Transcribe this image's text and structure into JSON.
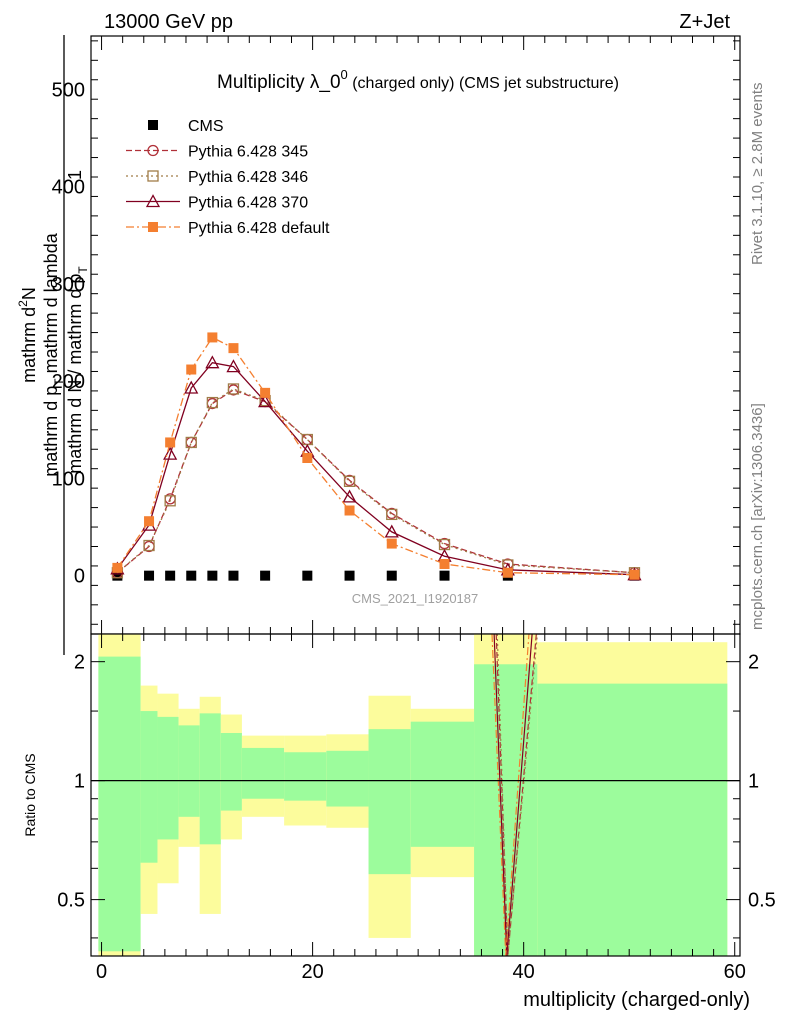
{
  "header": {
    "left": "13000 GeV pp",
    "right": "Z+Jet"
  },
  "side_labels": {
    "rivet": "Rivet 3.1.10, ≥ 2.8M events",
    "mcplots": "mcplots.cern.ch [arXiv:1306.3436]"
  },
  "watermark": "CMS_2021_I1920187",
  "chart_data": [
    {
      "type": "line",
      "title_main": "Multiplicity λ_0",
      "title_sup": "0",
      "title_rest": " (charged only) (CMS jet substructure)",
      "ylabel_numer_line1": "mathrm d",
      "ylabel_numer_sup": "2",
      "ylabel_numer_N": "N",
      "ylabel_numer_line2": "mathrm d p",
      "ylabel_numer_sub": "T",
      "ylabel_numer_line3": " mathrm d lambda",
      "ylabel_prefix": "1",
      "ylabel_denom": "mathrm d N / mathrm d p",
      "ylabel_denom_sub": "T",
      "ylim": [
        -60,
        555
      ],
      "xlim": [
        -1,
        60.5
      ],
      "yticks": [
        0,
        100,
        200,
        300,
        400,
        500
      ],
      "legend_position": "top-left",
      "series": [
        {
          "name": "CMS",
          "color": "#000000",
          "marker": "filled-square",
          "x": [
            1.5,
            4.5,
            6.5,
            8.5,
            10.5,
            12.5,
            15.5,
            19.5,
            23.5,
            27.5,
            32.5,
            38.5,
            50.5
          ],
          "values": [
            0,
            0,
            0,
            0,
            0,
            0,
            0,
            0,
            0,
            0,
            0,
            0,
            0
          ]
        },
        {
          "name": "Pythia 6.428 345",
          "color": "#b03038",
          "marker": "open-circle",
          "x": [
            1.5,
            4.5,
            6.5,
            8.5,
            10.5,
            12.5,
            15.5,
            19.5,
            23.5,
            27.5,
            32.5,
            38.5,
            50.5
          ],
          "values": [
            3,
            30,
            79,
            137,
            177,
            191,
            179,
            140,
            98,
            64,
            33,
            12,
            3
          ]
        },
        {
          "name": "Pythia 6.428 346",
          "color": "#a07c48",
          "marker": "open-square",
          "x": [
            1.5,
            4.5,
            6.5,
            8.5,
            10.5,
            12.5,
            15.5,
            19.5,
            23.5,
            27.5,
            32.5,
            38.5,
            50.5
          ],
          "values": [
            3,
            31,
            77,
            137,
            178,
            192,
            180,
            140,
            97,
            63,
            32,
            11,
            3
          ]
        },
        {
          "name": "Pythia 6.428 370",
          "color": "#800020",
          "marker": "open-triangle",
          "x": [
            1.5,
            4.5,
            6.5,
            8.5,
            10.5,
            12.5,
            15.5,
            19.5,
            23.5,
            27.5,
            32.5,
            38.5,
            50.5
          ],
          "values": [
            7,
            52,
            125,
            193,
            219,
            215,
            179,
            128,
            81,
            45,
            20,
            6,
            1
          ]
        },
        {
          "name": "Pythia 6.428 default",
          "color": "#f47f30",
          "marker": "filled-square",
          "x": [
            1.5,
            4.5,
            6.5,
            8.5,
            10.5,
            12.5,
            15.5,
            19.5,
            23.5,
            27.5,
            32.5,
            38.5,
            50.5
          ],
          "values": [
            8,
            56,
            137,
            212,
            245,
            234,
            188,
            121,
            67,
            33,
            12,
            3,
            1
          ]
        }
      ]
    },
    {
      "type": "line",
      "ylabel": "Ratio to CMS",
      "xlabel": "multiplicity (charged-only)",
      "ylim": [
        0.36,
        2.35
      ],
      "xlim": [
        -1,
        60.5
      ],
      "xticks": [
        0,
        20,
        40,
        60
      ],
      "yticks": [
        0.5,
        1,
        2
      ],
      "reference_value": 1,
      "bands": {
        "edges": [
          -0.3,
          3.7,
          5.3,
          7.3,
          9.3,
          11.3,
          13.3,
          17.3,
          21.3,
          25.3,
          29.3,
          35.3,
          41.3,
          59.3
        ],
        "inner_color": "#9cfc9c",
        "outer_color": "#fcfc9c",
        "inner_hi": [
          2.06,
          1.5,
          1.45,
          1.38,
          1.48,
          1.32,
          1.21,
          1.18,
          1.19,
          1.35,
          1.41,
          1.97,
          1.76
        ],
        "inner_lo": [
          0.37,
          0.62,
          0.71,
          0.81,
          0.69,
          0.84,
          0.9,
          0.89,
          0.86,
          0.58,
          0.68,
          0.36,
          0.36
        ],
        "outer_hi": [
          2.36,
          1.74,
          1.66,
          1.52,
          1.63,
          1.47,
          1.3,
          1.3,
          1.31,
          1.64,
          1.52,
          2.36,
          2.24
        ],
        "outer_lo": [
          0.36,
          0.46,
          0.55,
          0.68,
          0.46,
          0.71,
          0.81,
          0.77,
          0.76,
          0.4,
          0.57,
          0.36,
          0.36
        ]
      },
      "series": [
        {
          "name": "Pythia 6.428 345",
          "color": "#b03038",
          "x": [
            37.4,
            38.5,
            41.2
          ],
          "values": [
            2.4,
            0.3,
            2.4
          ]
        },
        {
          "name": "Pythia 6.428 346",
          "color": "#a07c48",
          "x": [
            37.5,
            38.5,
            41.3
          ],
          "values": [
            2.4,
            0.3,
            2.4
          ]
        },
        {
          "name": "Pythia 6.428 370",
          "color": "#800020",
          "x": [
            37.2,
            38.4,
            40.8
          ],
          "values": [
            2.4,
            0.3,
            2.4
          ]
        },
        {
          "name": "Pythia 6.428 default",
          "color": "#f47f30",
          "x": [
            37.0,
            38.3,
            40.5
          ],
          "values": [
            2.4,
            0.3,
            2.4
          ]
        }
      ]
    }
  ]
}
